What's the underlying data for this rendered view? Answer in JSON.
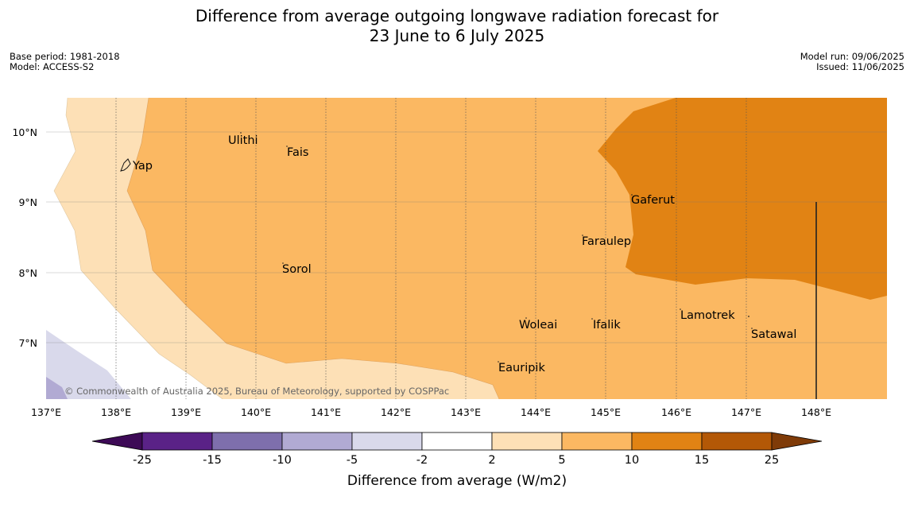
{
  "title_line1": "Difference from average outgoing longwave radiation forecast for",
  "title_line2": "23 June to 6 July 2025",
  "meta_left": [
    "Base period: 1981-2018",
    "Model: ACCESS-S2"
  ],
  "meta_right": [
    "Model run: 09/06/2025",
    "Issued: 11/06/2025"
  ],
  "copyright": "© Commonwealth of Australia 2025, Bureau of Meteorology, supported by COSPPac",
  "lon_ticks": [
    "137°E",
    "138°E",
    "139°E",
    "140°E",
    "141°E",
    "142°E",
    "143°E",
    "144°E",
    "145°E",
    "146°E",
    "147°E",
    "148°E"
  ],
  "lat_ticks": [
    "10°N",
    "9°N",
    "8°N",
    "7°N"
  ],
  "places": [
    {
      "name": "Yap"
    },
    {
      "name": "Ulithi"
    },
    {
      "name": "Fais"
    },
    {
      "name": "Gaferut"
    },
    {
      "name": "Faraulep"
    },
    {
      "name": "Sorol"
    },
    {
      "name": "Woleai"
    },
    {
      "name": "Ifalik"
    },
    {
      "name": "Lamotrek"
    },
    {
      "name": "Satawal"
    },
    {
      "name": "Eauripik"
    }
  ],
  "colorbar": {
    "label": "Difference from average (W/m2)",
    "ticks": [
      "-25",
      "-15",
      "-10",
      "-5",
      "-2",
      "2",
      "5",
      "10",
      "15",
      "25"
    ],
    "colors": [
      "#3d0a56",
      "#5a2287",
      "#7e6fac",
      "#b1aad3",
      "#d9d9eb",
      "#ffffff",
      "#fde0b6",
      "#fbb862",
      "#e18314",
      "#b35806",
      "#7f3b08"
    ]
  }
}
